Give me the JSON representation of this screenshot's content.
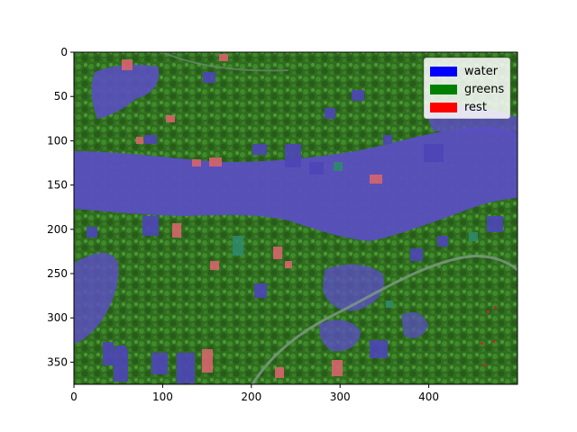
{
  "chart_data": {
    "type": "image",
    "xlim": [
      0,
      500
    ],
    "ylim": [
      375,
      0
    ],
    "xticks": [
      "0",
      "100",
      "200",
      "300",
      "400"
    ],
    "yticks": [
      "0",
      "50",
      "100",
      "150",
      "200",
      "250",
      "300",
      "350"
    ],
    "legend_position": "top-right"
  },
  "legend": {
    "items": [
      {
        "label": "water",
        "color": "#0000ff"
      },
      {
        "label": "greens",
        "color": "#008000"
      },
      {
        "label": "rest",
        "color": "#ff0000"
      }
    ]
  },
  "colors": {
    "water_overlay": "#5a4fc0",
    "greens_overlay": "#2f6d1f",
    "rest_overlay": "#d8646c"
  }
}
